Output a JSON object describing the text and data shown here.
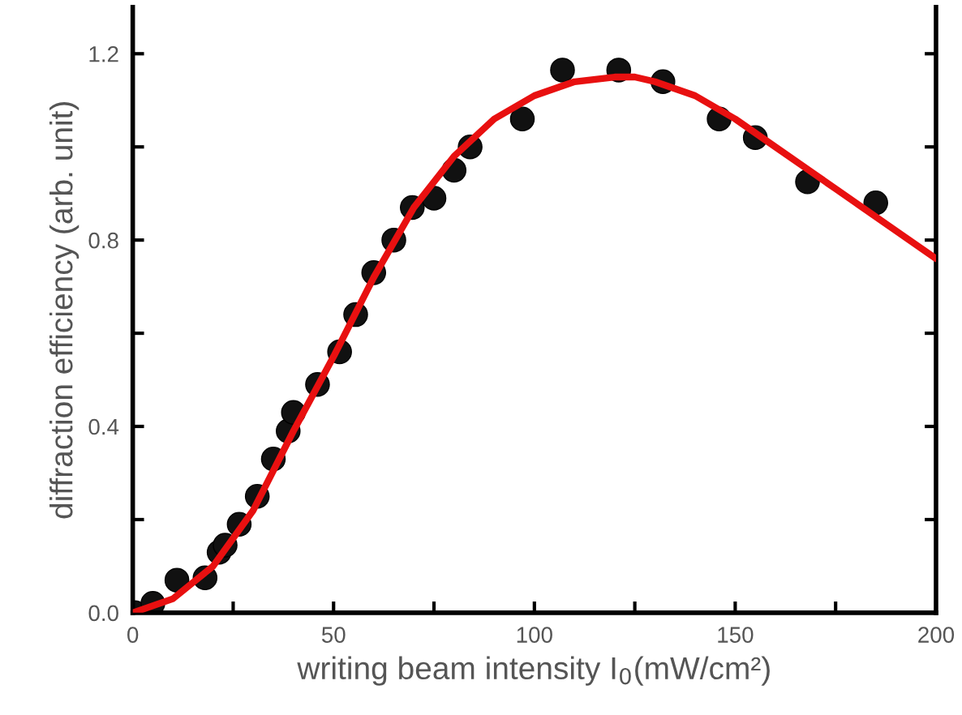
{
  "chart_data": {
    "type": "scatter",
    "xlabel": "writing beam intensity I$_{0}$(mW/cm²)",
    "ylabel": "diffraction efficiency (arb. unit)",
    "xlim": [
      0,
      200
    ],
    "ylim": [
      0,
      1.3
    ],
    "xticks": [
      0,
      {
        "value": 25,
        "label": null
      },
      50,
      {
        "value": 75,
        "label": null
      },
      100,
      {
        "value": 125,
        "label": null
      },
      150,
      {
        "value": 175,
        "label": null
      },
      200
    ],
    "yticks": [
      {
        "value": 0,
        "label": "0.0"
      },
      {
        "value": 0.2,
        "label": null
      },
      {
        "value": 0.4,
        "label": "0.4"
      },
      {
        "value": 0.6,
        "label": null
      },
      {
        "value": 0.8,
        "label": "0.8"
      },
      {
        "value": 1.0,
        "label": null
      },
      {
        "value": 1.2,
        "label": "1.2"
      }
    ],
    "grid": false,
    "series": [
      {
        "marker": "circle",
        "color": "#111111",
        "x": [
          0.5,
          5,
          11,
          18,
          21.5,
          23,
          26.5,
          31,
          35,
          38.7,
          40,
          46,
          51.5,
          55.5,
          60,
          65,
          69.6,
          75,
          80,
          84,
          97,
          107,
          121,
          132,
          146,
          155,
          168,
          185
        ],
        "values": [
          0.0,
          0.02,
          0.07,
          0.075,
          0.13,
          0.145,
          0.19,
          0.25,
          0.33,
          0.39,
          0.43,
          0.49,
          0.56,
          0.64,
          0.73,
          0.8,
          0.87,
          0.89,
          0.95,
          1.0,
          1.06,
          1.165,
          1.165,
          1.14,
          1.06,
          1.02,
          0.925,
          0.88
        ]
      },
      {
        "type": "line",
        "color": "#e81010",
        "x": [
          0,
          10,
          20,
          30,
          40,
          50,
          60,
          70,
          80,
          90,
          100,
          110,
          120,
          125,
          130,
          140,
          150,
          160,
          170,
          175,
          180,
          190,
          200
        ],
        "values": [
          0,
          0.03,
          0.1,
          0.22,
          0.39,
          0.55,
          0.72,
          0.87,
          0.98,
          1.06,
          1.11,
          1.14,
          1.15,
          1.15,
          1.14,
          1.11,
          1.06,
          1.0,
          0.94,
          0.91,
          0.88,
          0.82,
          0.76
        ]
      }
    ]
  }
}
